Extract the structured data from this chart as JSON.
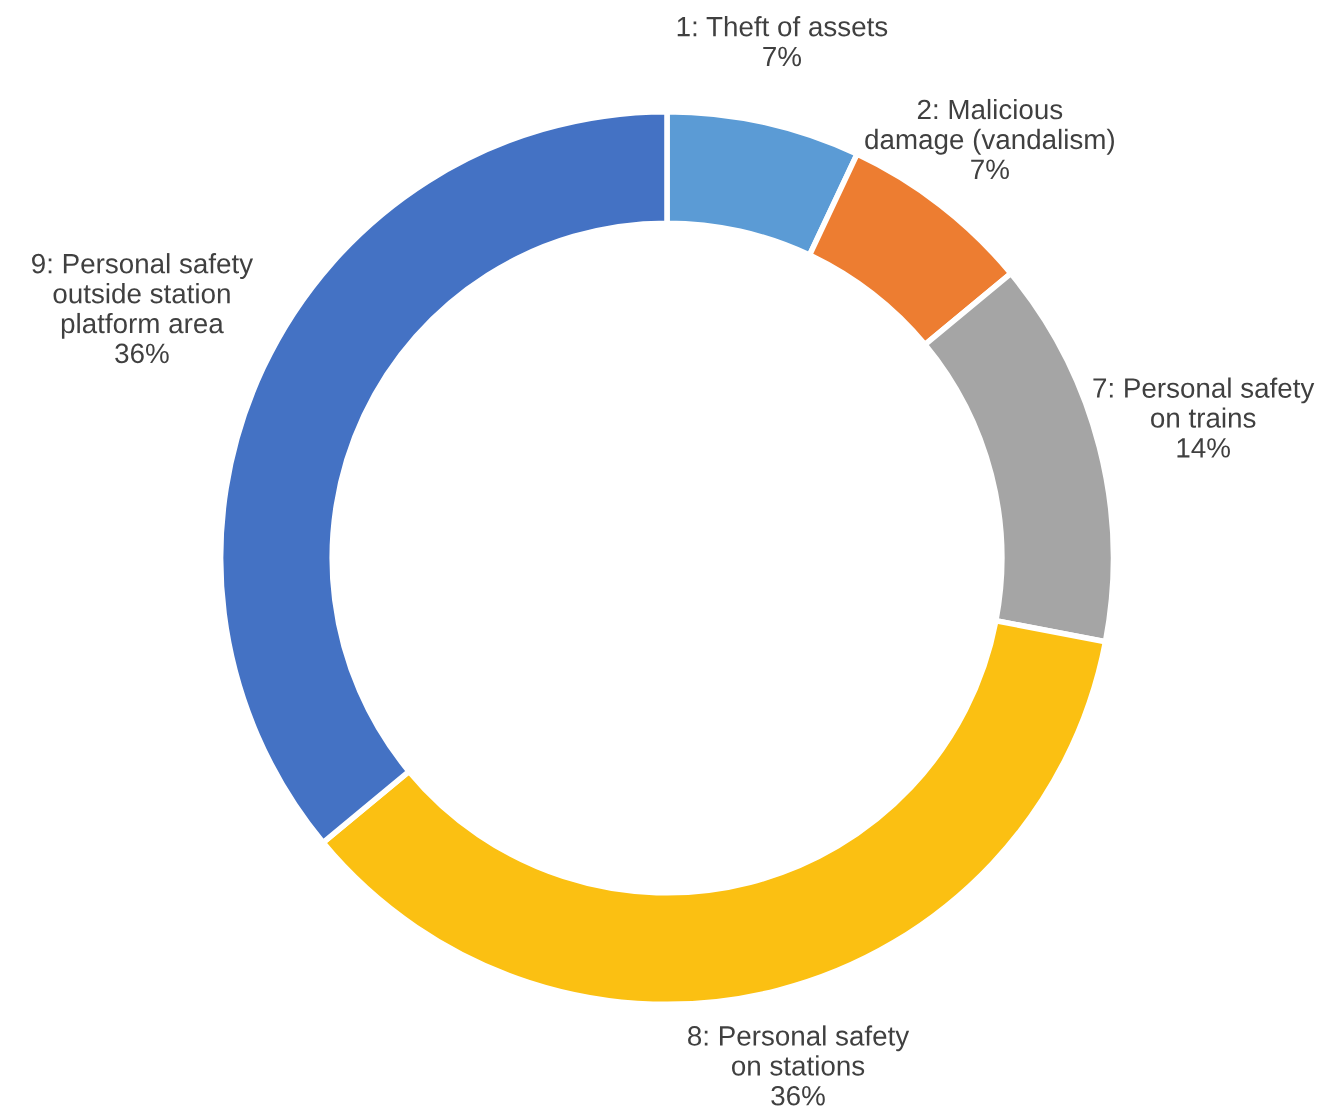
{
  "chart_data": {
    "type": "donut",
    "categories": [
      "1: Theft of assets",
      "2: Malicious\ndamage (vandalism)",
      "7: Personal safety\non trains",
      "8: Personal safety\non stations",
      "9: Personal safety\noutside station\nplatform area"
    ],
    "values": [
      7,
      7,
      14,
      36,
      36
    ],
    "colors": [
      "#5b9bd5",
      "#ed7d31",
      "#a5a5a5",
      "#fbc012",
      "#4472c4"
    ],
    "value_labels": [
      "7%",
      "7%",
      "14%",
      "36%",
      "36%"
    ],
    "legend": false
  }
}
